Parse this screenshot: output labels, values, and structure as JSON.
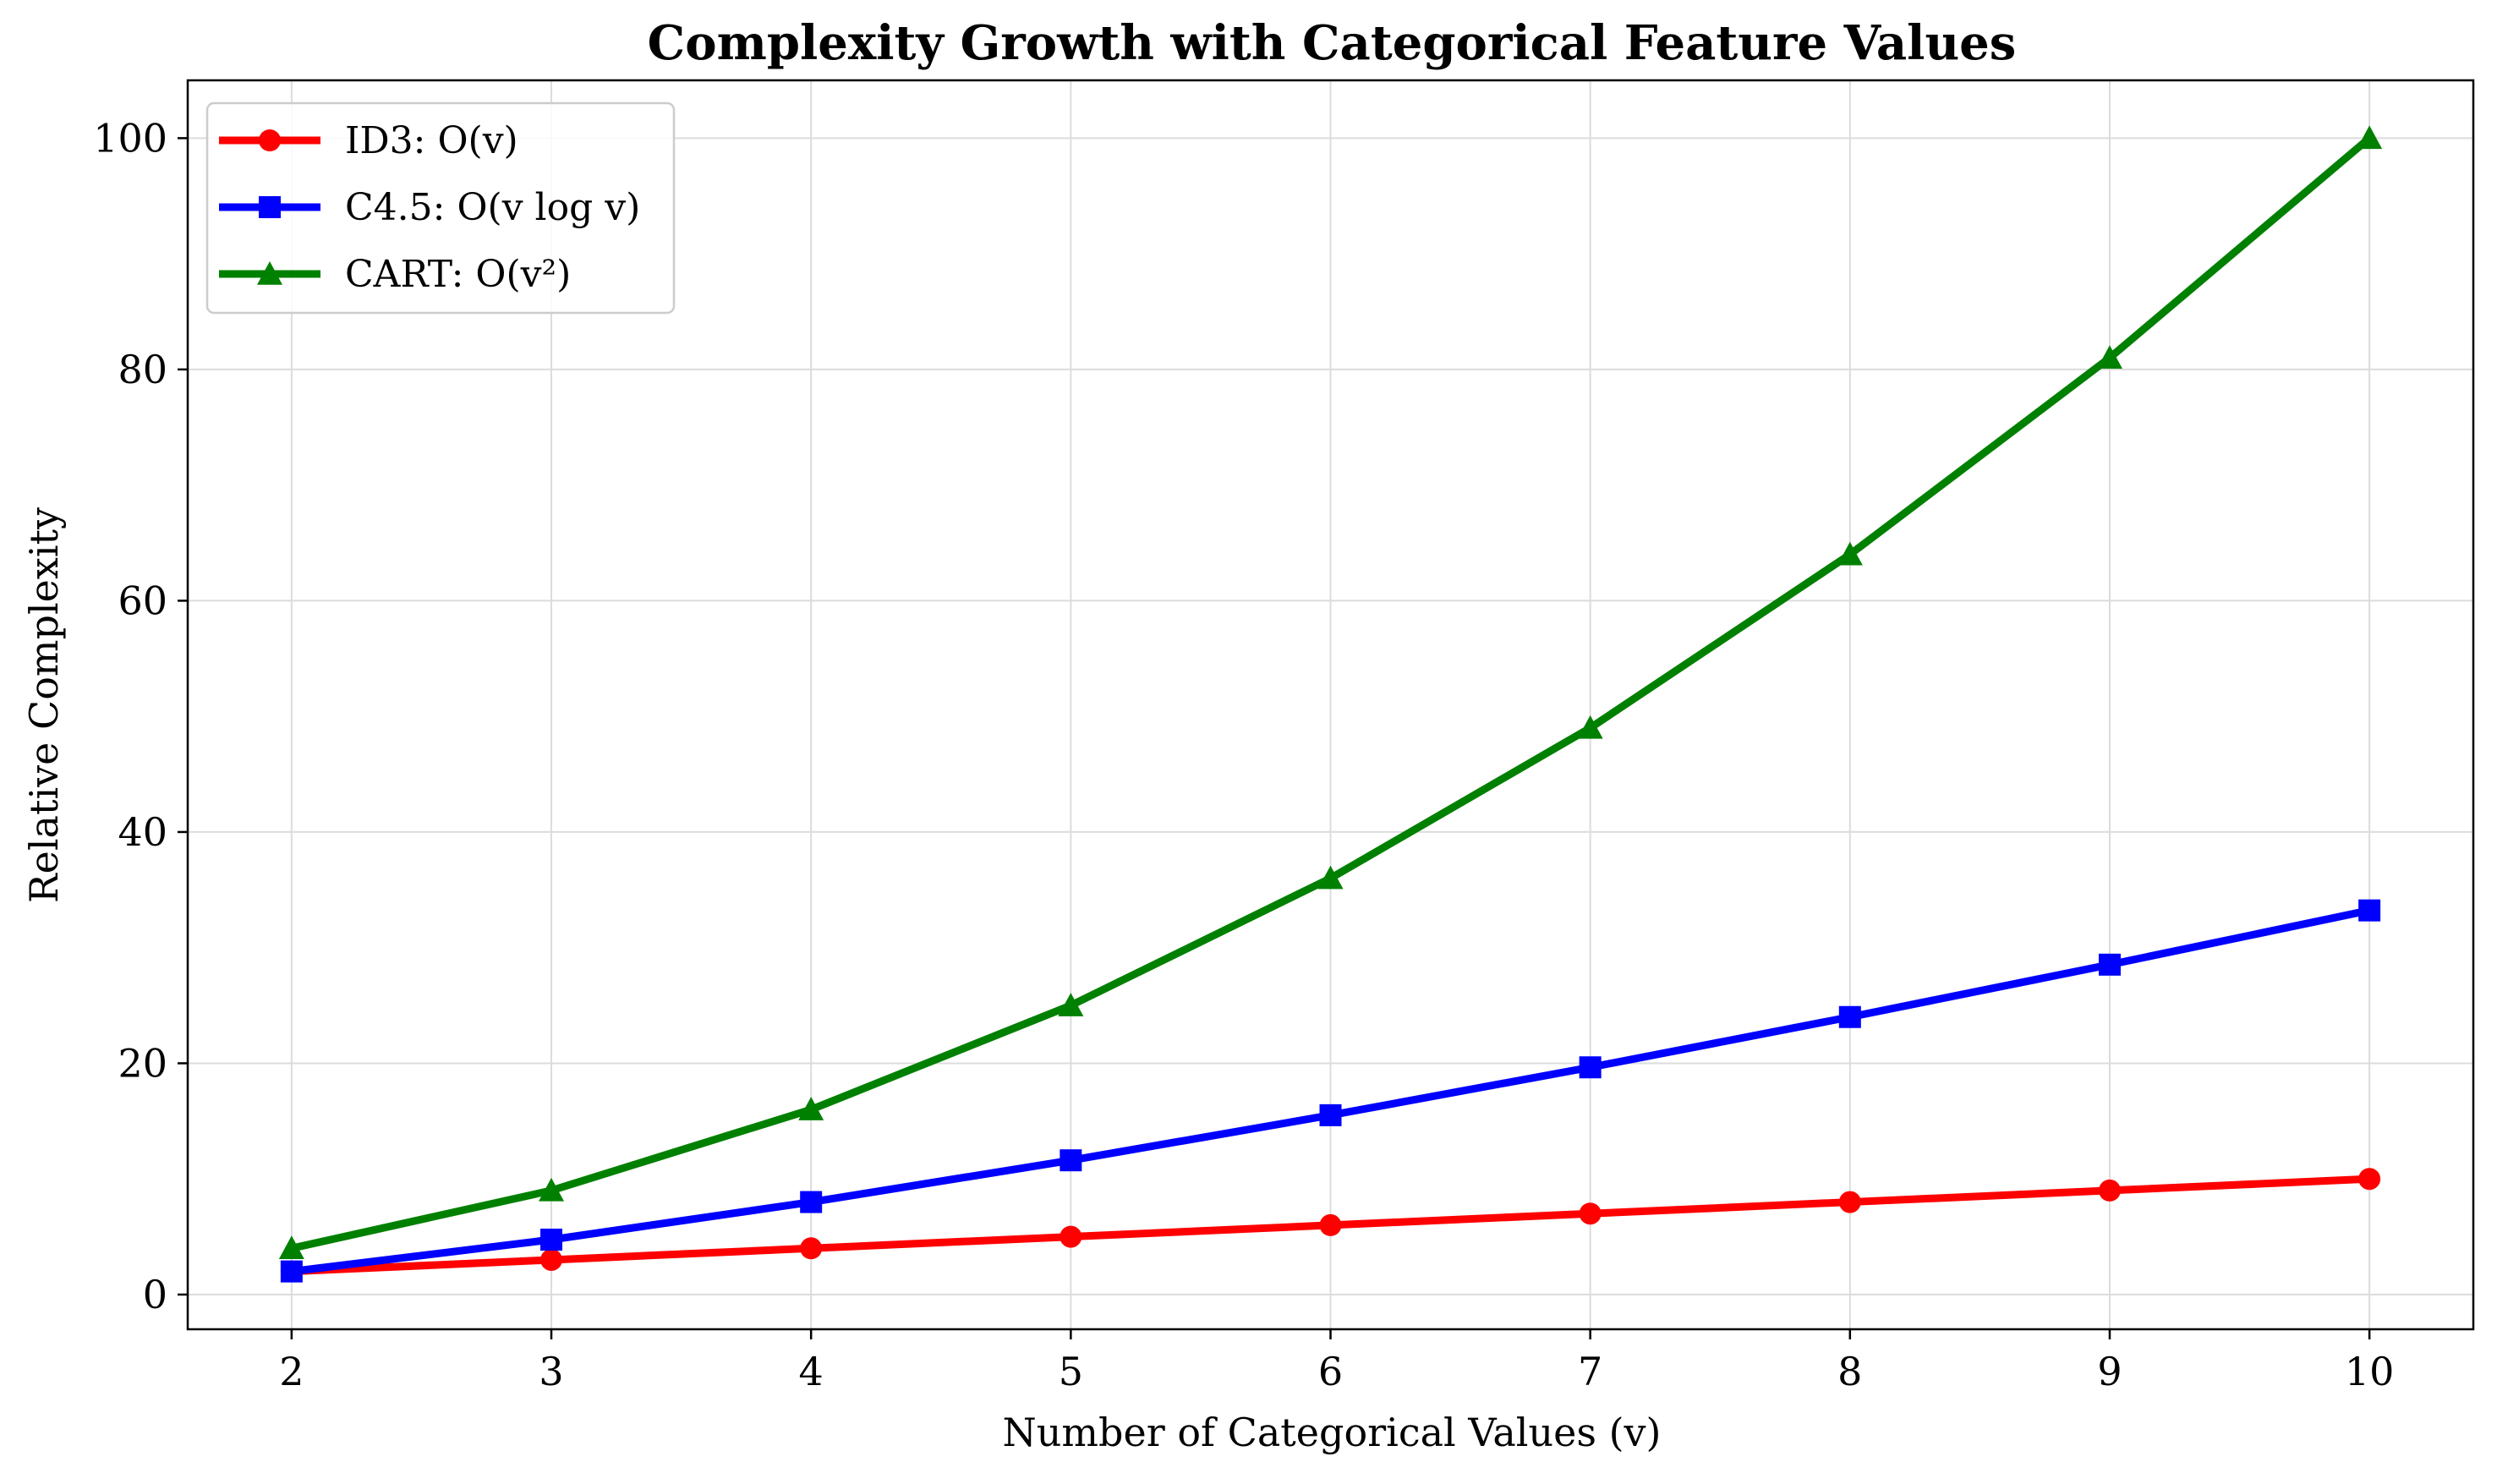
{
  "chart_data": {
    "type": "line",
    "title": "Complexity Growth with Categorical Feature Values",
    "xlabel": "Number of Categorical Values (v)",
    "ylabel": "Relative Complexity",
    "xlim": [
      1.6,
      10.4
    ],
    "ylim": [
      -3,
      105
    ],
    "x_ticks": [
      "2",
      "3",
      "4",
      "5",
      "6",
      "7",
      "8",
      "9",
      "10"
    ],
    "y_ticks": [
      "0",
      "20",
      "40",
      "60",
      "80",
      "100"
    ],
    "grid": true,
    "legend_position": "top-left",
    "x": [
      2,
      3,
      4,
      5,
      6,
      7,
      8,
      9,
      10
    ],
    "series": [
      {
        "name": "ID3: O(v)",
        "color": "#ff0000",
        "marker": "circle",
        "values": [
          2,
          3,
          4,
          5,
          6,
          7,
          8,
          9,
          10
        ]
      },
      {
        "name": "C4.5: O(v log v)",
        "color": "#0000ff",
        "marker": "square",
        "values": [
          2.0,
          4.75,
          8.0,
          11.61,
          15.51,
          19.65,
          24.0,
          28.53,
          33.22
        ]
      },
      {
        "name": "CART: O(v²)",
        "color": "#008000",
        "marker": "triangle",
        "values": [
          4,
          9,
          16,
          25,
          36,
          49,
          64,
          81,
          100
        ]
      }
    ]
  }
}
